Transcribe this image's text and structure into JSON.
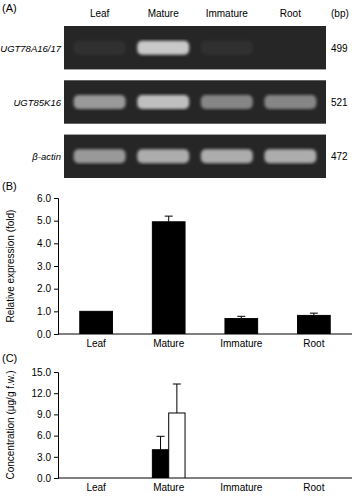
{
  "chart_data": [
    {
      "type": "gel",
      "title": "(A)",
      "categories": [
        "Leaf",
        "Mature",
        "Immature",
        "Root"
      ],
      "size_unit": "(bp)",
      "series": [
        {
          "name": "UGT78A16/17",
          "size": 499,
          "values": [
            0.05,
            0.85,
            0.05,
            0.0
          ]
        },
        {
          "name": "UGT85K16",
          "size": 521,
          "values": [
            0.6,
            0.8,
            0.5,
            0.5
          ]
        },
        {
          "name": "β-actin",
          "size": 472,
          "values": [
            0.6,
            0.7,
            0.7,
            0.7
          ]
        }
      ]
    },
    {
      "type": "bar",
      "title": "(B)",
      "y_label": "Relative expression (fold)",
      "categories": [
        "Leaf",
        "Mature",
        "Immature",
        "Root"
      ],
      "values": [
        1.0,
        4.95,
        0.68,
        0.82
      ],
      "errors": [
        0,
        0.25,
        0.1,
        0.1
      ],
      "color": "#000000",
      "ylim": [
        0,
        6
      ],
      "yticks": [
        {
          "value": 0,
          "label": "0.0"
        },
        {
          "value": 1,
          "label": "1.0"
        },
        {
          "value": 2,
          "label": "2.0"
        },
        {
          "value": 3,
          "label": "3.0"
        },
        {
          "value": 4,
          "label": "4.0"
        },
        {
          "value": 5,
          "label": "5.0"
        },
        {
          "value": 6,
          "label": "6.0"
        }
      ]
    },
    {
      "type": "bar",
      "title": "(C)",
      "y_label": "Concentration (μg/g f.w.)",
      "categories": [
        "Leaf",
        "Mature",
        "Immature",
        "Root"
      ],
      "series": [
        {
          "color": "#000000",
          "values": [
            0,
            4.0,
            0,
            0
          ],
          "errors": [
            0,
            1.9,
            0,
            0
          ]
        },
        {
          "color": "#ffffff",
          "values": [
            0,
            9.2,
            0,
            0
          ],
          "errors": [
            0,
            4.1,
            0,
            0
          ]
        }
      ],
      "ylim": [
        0,
        15
      ],
      "yticks": [
        {
          "value": 0,
          "label": "0.0"
        },
        {
          "value": 3,
          "label": "3.0"
        },
        {
          "value": 6,
          "label": "6.0"
        },
        {
          "value": 9,
          "label": "9.0"
        },
        {
          "value": 12,
          "label": "12.0"
        },
        {
          "value": 15,
          "label": "15.0"
        }
      ]
    }
  ]
}
